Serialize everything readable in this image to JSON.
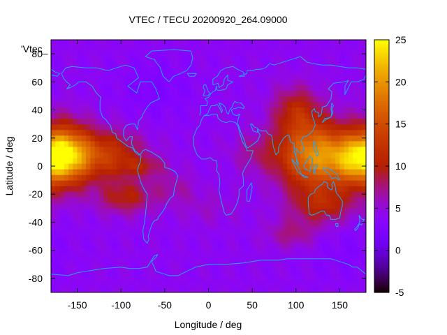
{
  "chart_data": {
    "type": "heatmap",
    "title": "VTEC / TECU 20200920_264.09000",
    "xlabel": "Longitude / deg",
    "ylabel": "Latitude / deg",
    "series_key": "'Vtec_",
    "xlim": [
      -180,
      180
    ],
    "ylim": [
      -90,
      90
    ],
    "x_ticks": [
      -150,
      -100,
      -50,
      0,
      50,
      100,
      150
    ],
    "y_ticks": [
      -80,
      -60,
      -40,
      -20,
      0,
      20,
      40,
      60,
      80
    ],
    "colorbar": {
      "range": [
        -5,
        25
      ],
      "ticks": [
        -5,
        0,
        5,
        10,
        15,
        20,
        25
      ],
      "palette": "gnuplot (black-purple-red-orange-yellow)"
    },
    "background_level": 4,
    "map_overlay": "coastlines",
    "blobs": [
      {
        "lon": -165,
        "lat": 8,
        "slon": 20,
        "slat": 15,
        "amp": 17
      },
      {
        "lon": -120,
        "lat": 8,
        "slon": 30,
        "slat": 12,
        "amp": 9
      },
      {
        "lon": -75,
        "lat": 0,
        "slon": 18,
        "slat": 5,
        "amp": 4
      },
      {
        "lon": -95,
        "lat": -22,
        "slon": 22,
        "slat": 8,
        "amp": 6
      },
      {
        "lon": -40,
        "lat": -15,
        "slon": 18,
        "slat": 8,
        "amp": 2.5
      },
      {
        "lon": 120,
        "lat": 8,
        "slon": 28,
        "slat": 17,
        "amp": 15
      },
      {
        "lon": 165,
        "lat": 5,
        "slon": 20,
        "slat": 13,
        "amp": 11
      },
      {
        "lon": 100,
        "lat": 40,
        "slon": 18,
        "slat": 12,
        "amp": 6
      },
      {
        "lon": 55,
        "lat": 10,
        "slon": 20,
        "slat": 10,
        "amp": 3
      },
      {
        "lon": 130,
        "lat": -28,
        "slon": 25,
        "slat": 9,
        "amp": 6
      },
      {
        "lon": 95,
        "lat": -48,
        "slon": 20,
        "slat": 7,
        "amp": 3.5
      },
      {
        "lon": 0,
        "lat": -30,
        "slon": 25,
        "slat": 8,
        "amp": 1.5
      },
      {
        "lon": -60,
        "lat": 55,
        "slon": 30,
        "slat": 15,
        "amp": -1.5
      },
      {
        "lon": 160,
        "lat": -60,
        "slon": 30,
        "slat": 15,
        "amp": -1
      }
    ]
  }
}
